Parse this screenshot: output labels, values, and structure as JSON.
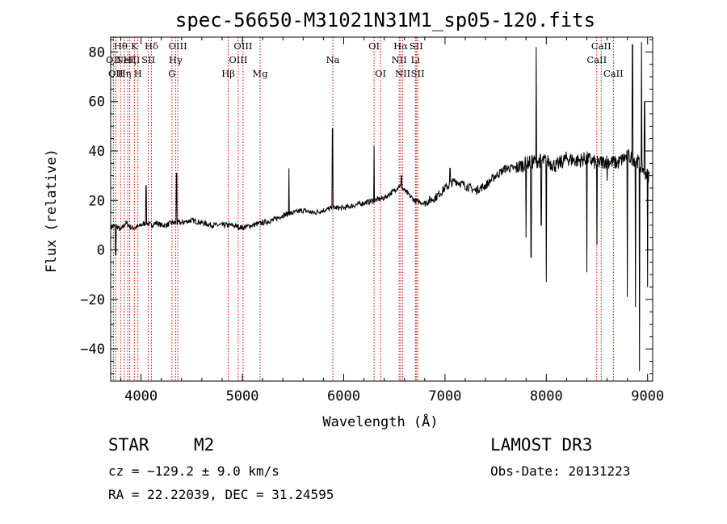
{
  "chart_data": {
    "type": "line",
    "title": "spec-56650-M31021N31M1_sp05-120.fits",
    "xlabel": "Wavelength (Å)",
    "ylabel": "Flux (relative)",
    "xlim": [
      3700,
      9050
    ],
    "ylim": [
      -53,
      86
    ],
    "xticks": [
      4000,
      5000,
      6000,
      7000,
      8000,
      9000
    ],
    "yticks": [
      -40,
      -20,
      0,
      20,
      40,
      60,
      80
    ],
    "series": [
      {
        "name": "spectrum",
        "x": [
          3700,
          3750,
          3800,
          3850,
          3900,
          3950,
          4000,
          4050,
          4100,
          4150,
          4200,
          4250,
          4300,
          4350,
          4400,
          4500,
          4600,
          4700,
          4800,
          4900,
          5000,
          5100,
          5200,
          5300,
          5400,
          5500,
          5600,
          5700,
          5800,
          5900,
          6000,
          6100,
          6200,
          6300,
          6400,
          6500,
          6550,
          6600,
          6700,
          6800,
          6900,
          7000,
          7100,
          7200,
          7300,
          7400,
          7500,
          7600,
          7700,
          7800,
          7900,
          8000,
          8100,
          8200,
          8300,
          8400,
          8500,
          8600,
          8700,
          8800,
          8850,
          8900,
          8950,
          9000
        ],
        "y": [
          9,
          10,
          8,
          11,
          9,
          9,
          10,
          11,
          10,
          11,
          10,
          10,
          11,
          11,
          11,
          12,
          11,
          10,
          10,
          10,
          9,
          10,
          11,
          12,
          14,
          15,
          16,
          15,
          16,
          17,
          17,
          18,
          19,
          20,
          21,
          24,
          26,
          24,
          20,
          19,
          21,
          25,
          28,
          26,
          24,
          26,
          30,
          33,
          33,
          35,
          36,
          36,
          34,
          37,
          36,
          37,
          35,
          36,
          35,
          38,
          37,
          36,
          33,
          30
        ]
      }
    ],
    "spikes": [
      {
        "x": 3750,
        "y": -2
      },
      {
        "x": 4050,
        "y": 26
      },
      {
        "x": 4350,
        "y": 31
      },
      {
        "x": 5460,
        "y": 33
      },
      {
        "x": 5890,
        "y": 49
      },
      {
        "x": 6300,
        "y": 42
      },
      {
        "x": 6570,
        "y": 30
      },
      {
        "x": 7050,
        "y": 33
      },
      {
        "x": 7800,
        "y": 5
      },
      {
        "x": 7850,
        "y": -3
      },
      {
        "x": 7900,
        "y": 82
      },
      {
        "x": 7950,
        "y": 10
      },
      {
        "x": 8000,
        "y": -13
      },
      {
        "x": 8400,
        "y": -9
      },
      {
        "x": 8500,
        "y": 2
      },
      {
        "x": 8600,
        "y": 28
      },
      {
        "x": 8800,
        "y": -19
      },
      {
        "x": 8850,
        "y": 83
      },
      {
        "x": 8880,
        "y": -23
      },
      {
        "x": 8920,
        "y": -49
      },
      {
        "x": 8940,
        "y": 84
      },
      {
        "x": 8970,
        "y": 60
      },
      {
        "x": 9000,
        "y": -15
      }
    ],
    "line_markers": [
      {
        "x": 3727,
        "label": "OII",
        "row": 1
      },
      {
        "x": 3750,
        "label": "OII",
        "row": 2
      },
      {
        "x": 3798,
        "label": "Hθ",
        "row": 0
      },
      {
        "x": 3835,
        "label": "Hη",
        "row": 2
      },
      {
        "x": 3869,
        "label": "NeIII",
        "row": 1
      },
      {
        "x": 3889,
        "label": "Hζ",
        "row": 1
      },
      {
        "x": 3934,
        "label": "K",
        "row": 0
      },
      {
        "x": 3969,
        "label": "H",
        "row": 2
      },
      {
        "x": 4072,
        "label": "SII",
        "row": 1
      },
      {
        "x": 4102,
        "label": "Hδ",
        "row": 0
      },
      {
        "x": 4305,
        "label": "G",
        "row": 2
      },
      {
        "x": 4340,
        "label": "Hγ",
        "row": 1
      },
      {
        "x": 4363,
        "label": "OIII",
        "row": 0
      },
      {
        "x": 4861,
        "label": "Hβ",
        "row": 2
      },
      {
        "x": 4959,
        "label": "OIII",
        "row": 1
      },
      {
        "x": 5007,
        "label": "OIII",
        "row": 0
      },
      {
        "x": 5175,
        "label": "Mg",
        "row": 2
      },
      {
        "x": 5893,
        "label": "Na",
        "row": 1
      },
      {
        "x": 6300,
        "label": "OI",
        "row": 0
      },
      {
        "x": 6364,
        "label": "OI",
        "row": 2
      },
      {
        "x": 6548,
        "label": "NII",
        "row": 1
      },
      {
        "x": 6563,
        "label": "Hα",
        "row": 0
      },
      {
        "x": 6583,
        "label": "NII",
        "row": 2
      },
      {
        "x": 6708,
        "label": "Li",
        "row": 1
      },
      {
        "x": 6716,
        "label": "SII",
        "row": 0
      },
      {
        "x": 6731,
        "label": "SII",
        "row": 2
      },
      {
        "x": 8498,
        "label": "CaII",
        "row": 1
      },
      {
        "x": 8542,
        "label": "CaII",
        "row": 0
      },
      {
        "x": 8662,
        "label": "CaII",
        "row": 2
      }
    ]
  },
  "info": {
    "class": "STAR",
    "subclass": "M2",
    "survey": "LAMOST DR3",
    "cz": "cz = −129.2 ± 9.0 km/s",
    "obs_date": "Obs-Date: 20131223",
    "coords": "RA =  22.22039, DEC =  31.24595"
  }
}
